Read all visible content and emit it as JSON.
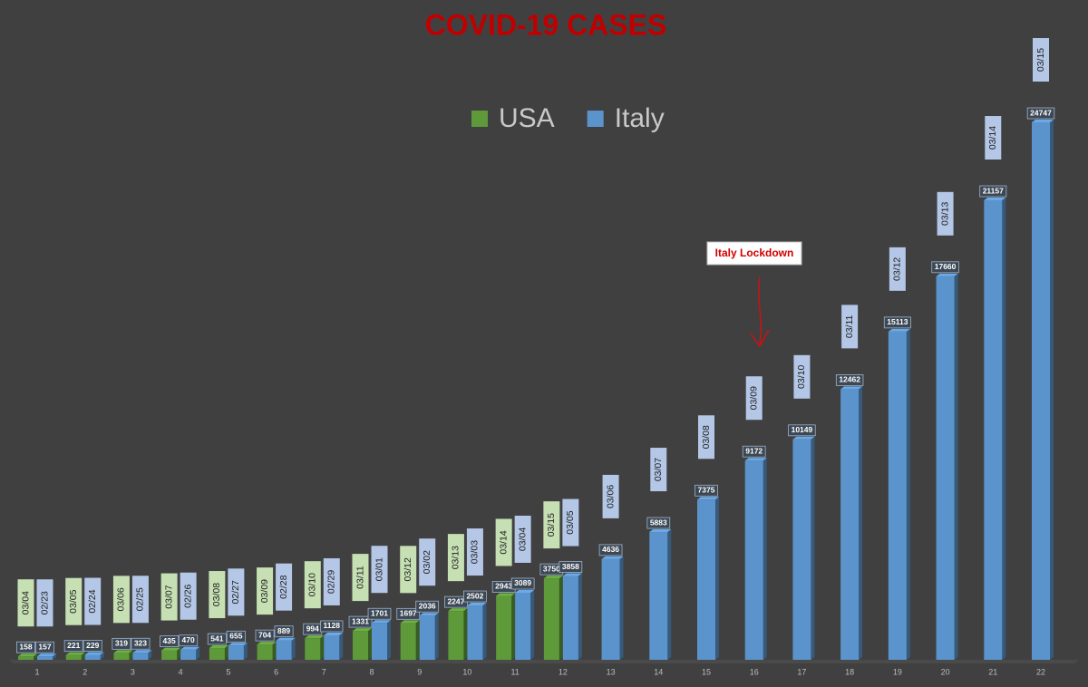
{
  "chart_data": {
    "type": "bar",
    "title": "COVID-19 CASES",
    "categories": [
      "1",
      "2",
      "3",
      "4",
      "5",
      "6",
      "7",
      "8",
      "9",
      "10",
      "11",
      "12",
      "13",
      "14",
      "15",
      "16",
      "17",
      "18",
      "19",
      "20",
      "21",
      "22"
    ],
    "series": [
      {
        "name": "USA",
        "color": "#5e9a3a",
        "values": [
          158,
          221,
          319,
          435,
          541,
          704,
          994,
          1331,
          1697,
          2247,
          2943,
          3750,
          null,
          null,
          null,
          null,
          null,
          null,
          null,
          null,
          null,
          null
        ],
        "dates": [
          "03/04",
          "03/05",
          "03/06",
          "03/07",
          "03/08",
          "03/09",
          "03/10",
          "03/11",
          "03/12",
          "03/13",
          "03/14",
          "03/15",
          null,
          null,
          null,
          null,
          null,
          null,
          null,
          null,
          null,
          null
        ]
      },
      {
        "name": "Italy",
        "color": "#5b94cc",
        "values": [
          157,
          229,
          323,
          470,
          655,
          889,
          1128,
          1701,
          2036,
          2502,
          3089,
          3858,
          4636,
          5883,
          7375,
          9172,
          10149,
          12462,
          15113,
          17660,
          21157,
          24747
        ],
        "dates": [
          "02/23",
          "02/24",
          "02/25",
          "02/26",
          "02/27",
          "02/28",
          "02/29",
          "03/01",
          "03/02",
          "03/03",
          "03/04",
          "03/05",
          "03/06",
          "03/07",
          "03/08",
          "03/09",
          "03/10",
          "03/11",
          "03/12",
          "03/13",
          "03/14",
          "03/15"
        ]
      }
    ],
    "annotation": "Italy Lockdown",
    "legend": "top"
  }
}
